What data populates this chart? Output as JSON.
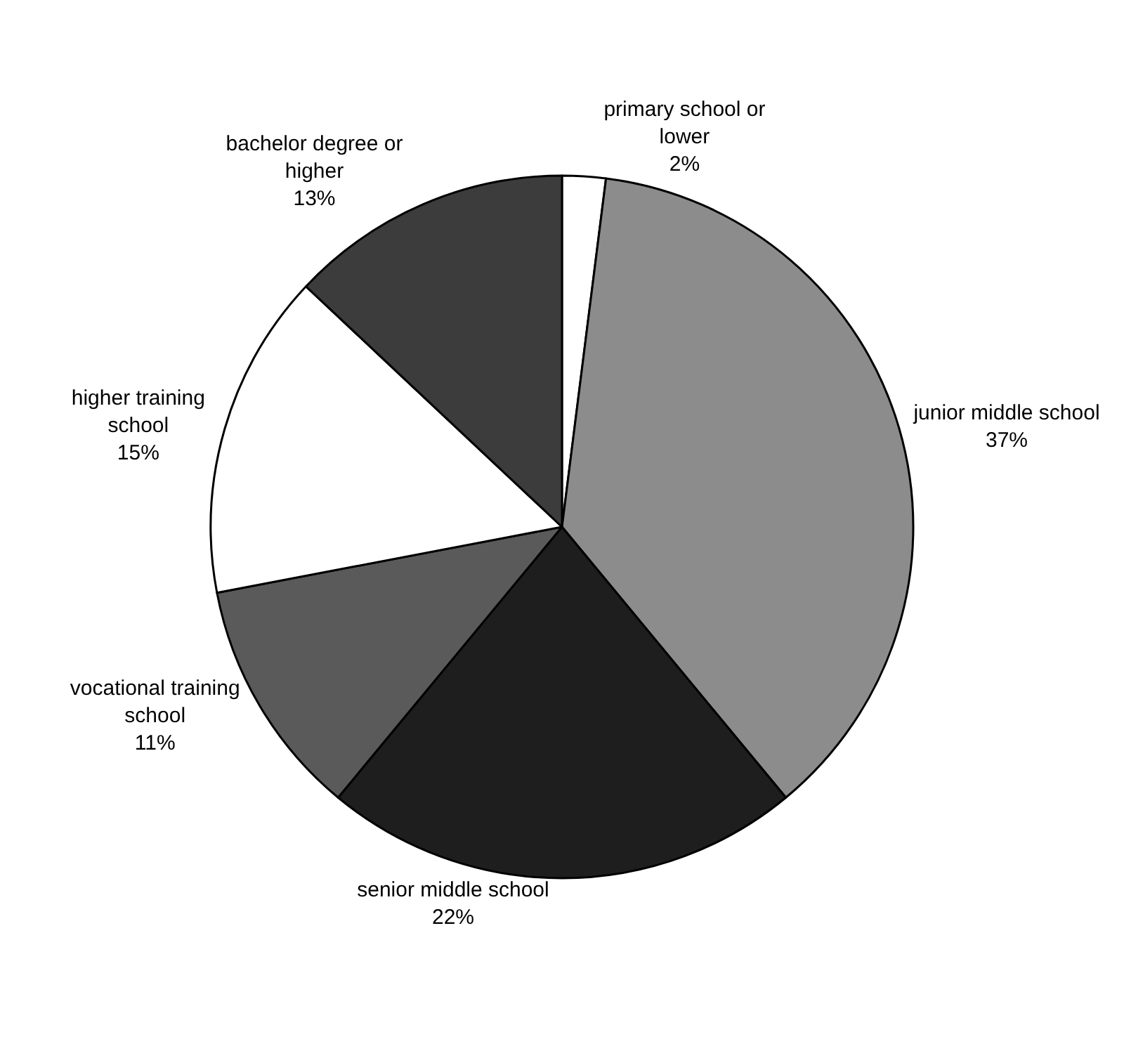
{
  "chart_data": {
    "type": "pie",
    "categories": [
      "primary school or lower",
      "junior middle school",
      "senior middle school",
      "vocational training school",
      "higher training school",
      "bachelor degree or higher"
    ],
    "values": [
      2,
      37,
      22,
      11,
      15,
      13
    ],
    "value_labels": [
      "2%",
      "37%",
      "22%",
      "11%",
      "15%",
      "13%"
    ],
    "colors": [
      "#ffffff",
      "#8c8c8c",
      "#1e1e1e",
      "#5a5a5a",
      "#ffffff",
      "#3c3c3c"
    ],
    "legend": false
  }
}
